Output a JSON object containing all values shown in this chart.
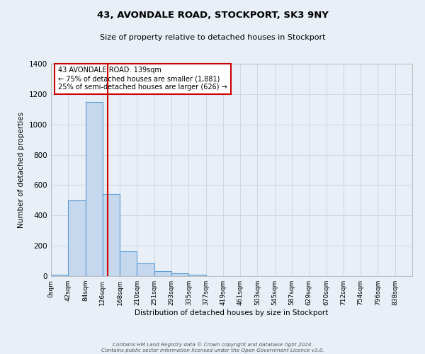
{
  "title": "43, AVONDALE ROAD, STOCKPORT, SK3 9NY",
  "subtitle": "Size of property relative to detached houses in Stockport",
  "xlabel": "Distribution of detached houses by size in Stockport",
  "ylabel": "Number of detached properties",
  "bar_labels": [
    "0sqm",
    "42sqm",
    "84sqm",
    "126sqm",
    "168sqm",
    "210sqm",
    "251sqm",
    "293sqm",
    "335sqm",
    "377sqm",
    "419sqm",
    "461sqm",
    "503sqm",
    "545sqm",
    "587sqm",
    "629sqm",
    "670sqm",
    "712sqm",
    "754sqm",
    "796sqm",
    "838sqm"
  ],
  "bar_values": [
    10,
    500,
    1150,
    540,
    165,
    85,
    35,
    20,
    10,
    0,
    0,
    0,
    0,
    0,
    0,
    0,
    0,
    0,
    0,
    0,
    0
  ],
  "bar_color": "#c5d8ed",
  "bar_edge_color": "#5b9bd5",
  "grid_color": "#c8d4e0",
  "background_color": "#e8eff6",
  "property_line_x": 139,
  "bin_width": 42,
  "ylim": [
    0,
    1400
  ],
  "annotation_line1": "43 AVONDALE ROAD: 139sqm",
  "annotation_line2": "← 75% of detached houses are smaller (1,881)",
  "annotation_line3": "25% of semi-detached houses are larger (626) →",
  "annotation_box_color": "#ffffff",
  "annotation_box_edge_color": "#cc0000",
  "red_line_color": "#cc0000",
  "footer_line1": "Contains HM Land Registry data © Crown copyright and database right 2024.",
  "footer_line2": "Contains public sector information licensed under the Open Government Licence v3.0."
}
